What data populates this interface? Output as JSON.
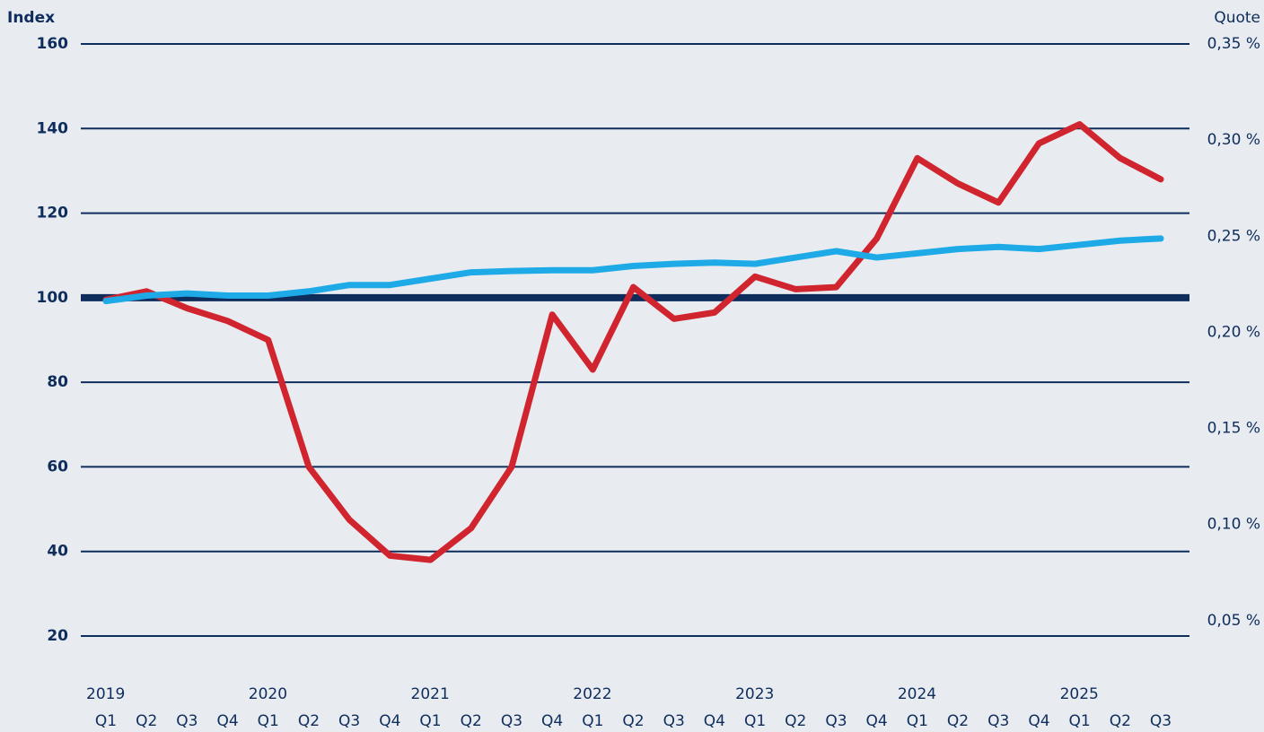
{
  "chart_data": {
    "type": "line",
    "y_label": "Index",
    "y2_label": "Quote",
    "categories": [
      "Q1",
      "Q2",
      "Q3",
      "Q4",
      "Q1",
      "Q2",
      "Q3",
      "Q4",
      "Q1",
      "Q2",
      "Q3",
      "Q4",
      "Q1",
      "Q2",
      "Q3",
      "Q4",
      "Q1",
      "Q2",
      "Q3",
      "Q4",
      "Q1",
      "Q2",
      "Q3",
      "Q4",
      "Q1",
      "Q2",
      "Q3"
    ],
    "groups": [
      {
        "label": "2019",
        "count": 4
      },
      {
        "label": "2020",
        "count": 4
      },
      {
        "label": "2021",
        "count": 4
      },
      {
        "label": "2022",
        "count": 4
      },
      {
        "label": "2023",
        "count": 4
      },
      {
        "label": "2024",
        "count": 4
      },
      {
        "label": "2025",
        "count": 3
      }
    ],
    "series": [
      {
        "color": "#d0252f",
        "values": [
          99.5,
          101.5,
          97.5,
          94.5,
          90,
          60,
          47.5,
          39,
          38,
          45.5,
          60,
          96,
          83,
          102.5,
          95,
          96.5,
          105,
          102,
          102.5,
          114,
          133,
          127,
          122.5,
          136.5,
          141,
          133,
          128
        ]
      },
      {
        "color": "#1eaae7",
        "values": [
          99.2,
          100.5,
          101,
          100.5,
          100.5,
          101.5,
          103,
          103,
          104.5,
          106,
          106.3,
          106.5,
          106.5,
          107.5,
          108,
          108.3,
          108,
          109.5,
          111,
          109.5,
          110.5,
          111.5,
          112,
          111.5,
          112.5,
          113.5,
          114
        ]
      }
    ],
    "reference_line": 100,
    "ylim": [
      20,
      160
    ],
    "yticks": [
      20,
      40,
      60,
      80,
      100,
      120,
      140,
      160
    ],
    "y2lim": [
      0.042,
      0.35
    ],
    "y2ticks": [
      {
        "value": 0.05,
        "label": "0,05 %"
      },
      {
        "value": 0.1,
        "label": "0,10 %"
      },
      {
        "value": 0.15,
        "label": "0,15 %"
      },
      {
        "value": 0.2,
        "label": "0,20 %"
      },
      {
        "value": 0.25,
        "label": "0,25 %"
      },
      {
        "value": 0.3,
        "label": "0,30 %"
      },
      {
        "value": 0.35,
        "label": "0,35 %"
      }
    ],
    "grid": true
  }
}
